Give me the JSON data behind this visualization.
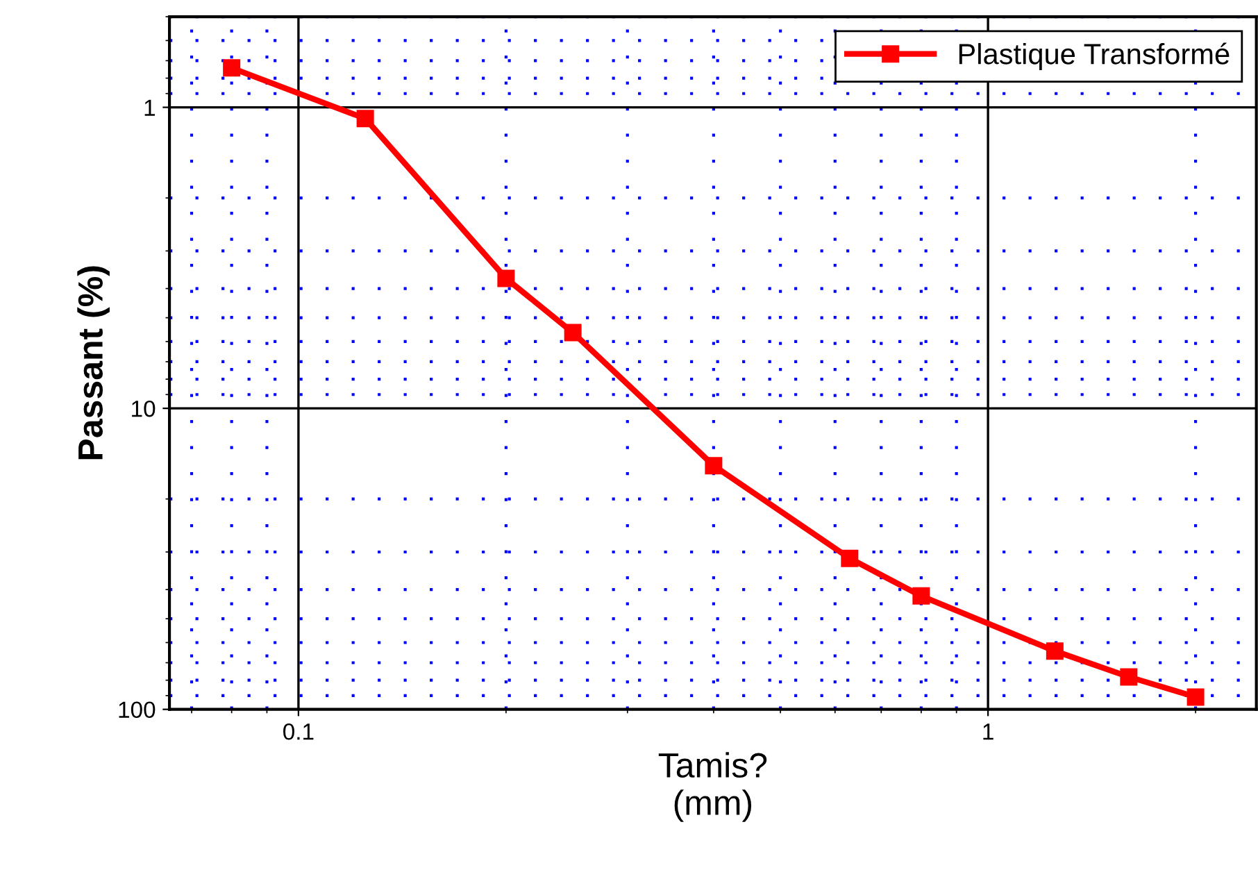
{
  "chart_data": {
    "type": "line",
    "xlabel": "Tamis?\n(mm)",
    "ylabel": "Passant (%)",
    "log": "xy",
    "x": [
      0.08,
      0.125,
      0.2,
      0.25,
      0.4,
      0.63,
      0.8,
      1.25,
      1.6,
      2.0
    ],
    "series": [
      {
        "name": "Plastique Transformé",
        "color": "#ff0000",
        "values": [
          0.74,
          1.09,
          3.7,
          5.6,
          15.5,
          31.5,
          42,
          64,
          78,
          91
        ]
      }
    ],
    "xlim": [
      0.065,
      2.45
    ],
    "xticks": [
      {
        "value": 0.07,
        "label": null
      },
      {
        "value": 0.08,
        "label": null
      },
      {
        "value": 0.09,
        "label": null
      },
      0.1,
      {
        "value": 0.2,
        "label": null
      },
      {
        "value": 0.3,
        "label": null
      },
      {
        "value": 0.4,
        "label": null
      },
      {
        "value": 0.5,
        "label": null
      },
      {
        "value": 0.6,
        "label": null
      },
      {
        "value": 0.7,
        "label": null
      },
      {
        "value": 0.8,
        "label": null
      },
      {
        "value": 0.9,
        "label": null
      },
      1,
      {
        "value": 2,
        "label": null
      }
    ],
    "ylim": [
      100,
      0.5
    ],
    "yticks": [
      {
        "value": 0.5,
        "label": null
      },
      {
        "value": 0.6,
        "label": null
      },
      {
        "value": 0.7,
        "label": null
      },
      {
        "value": 0.8,
        "label": null
      },
      {
        "value": 0.9,
        "label": null
      },
      1,
      {
        "value": 2,
        "label": null
      },
      {
        "value": 3,
        "label": null
      },
      {
        "value": 4,
        "label": null
      },
      {
        "value": 5,
        "label": null
      },
      {
        "value": 6,
        "label": null
      },
      {
        "value": 7,
        "label": null
      },
      {
        "value": 8,
        "label": null
      },
      {
        "value": 9,
        "label": null
      },
      10,
      {
        "value": 20,
        "label": null
      },
      {
        "value": 30,
        "label": null
      },
      {
        "value": 40,
        "label": null
      },
      {
        "value": 50,
        "label": null
      },
      {
        "value": 60,
        "label": null
      },
      {
        "value": 70,
        "label": null
      },
      {
        "value": 80,
        "label": null
      },
      {
        "value": 90,
        "label": null
      },
      100
    ],
    "grid": true,
    "legend": "top right",
    "marker": "square",
    "line_style": "solid"
  }
}
